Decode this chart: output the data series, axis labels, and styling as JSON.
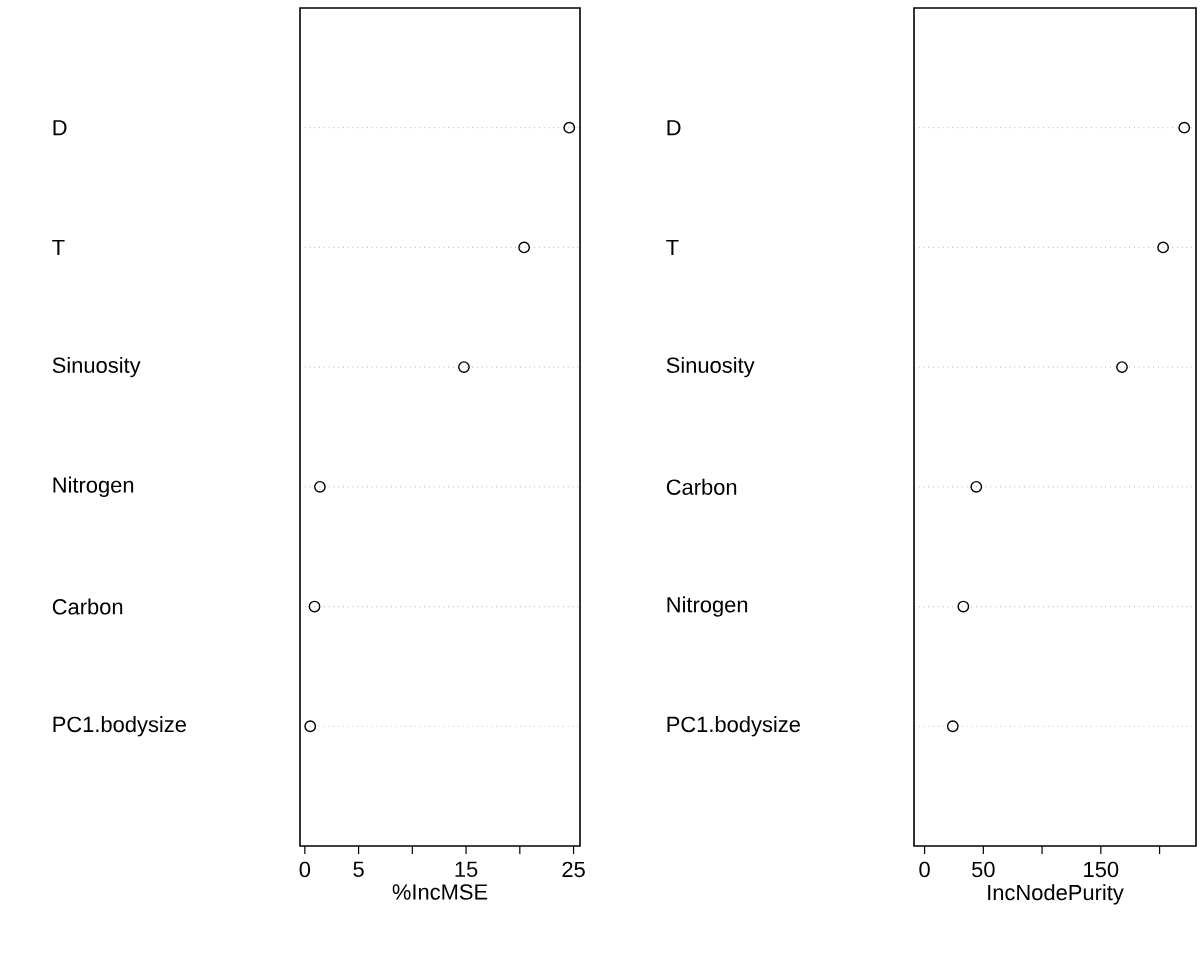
{
  "chart_data": [
    {
      "type": "scatter",
      "orientation": "horizontal",
      "categories": [
        "D",
        "T",
        "Sinuosity",
        "Nitrogen",
        "Carbon",
        "PC1.bodysize"
      ],
      "values": [
        24.6,
        20.4,
        14.8,
        1.4,
        0.9,
        0.5
      ],
      "color": "#000000",
      "xlabel": "%IncMSE",
      "xlim": [
        -0.45,
        25.6
      ],
      "xticks": [
        0,
        5,
        {
          "value": 10,
          "label": null
        },
        15,
        {
          "value": 20,
          "label": null
        },
        25
      ],
      "grid": "y",
      "marker": "circle"
    },
    {
      "type": "scatter",
      "orientation": "horizontal",
      "categories": [
        "D",
        "T",
        "Sinuosity",
        "Carbon",
        "Nitrogen",
        "PC1.bodysize"
      ],
      "values": [
        221,
        203,
        168,
        44,
        33,
        24
      ],
      "color": "#000000",
      "xlabel": "IncNodePurity",
      "xlim": [
        -9,
        231
      ],
      "xticks": [
        0,
        50,
        {
          "value": 100,
          "label": null
        },
        150,
        {
          "value": 200,
          "label": null
        }
      ],
      "grid": "y",
      "marker": "circle"
    }
  ]
}
